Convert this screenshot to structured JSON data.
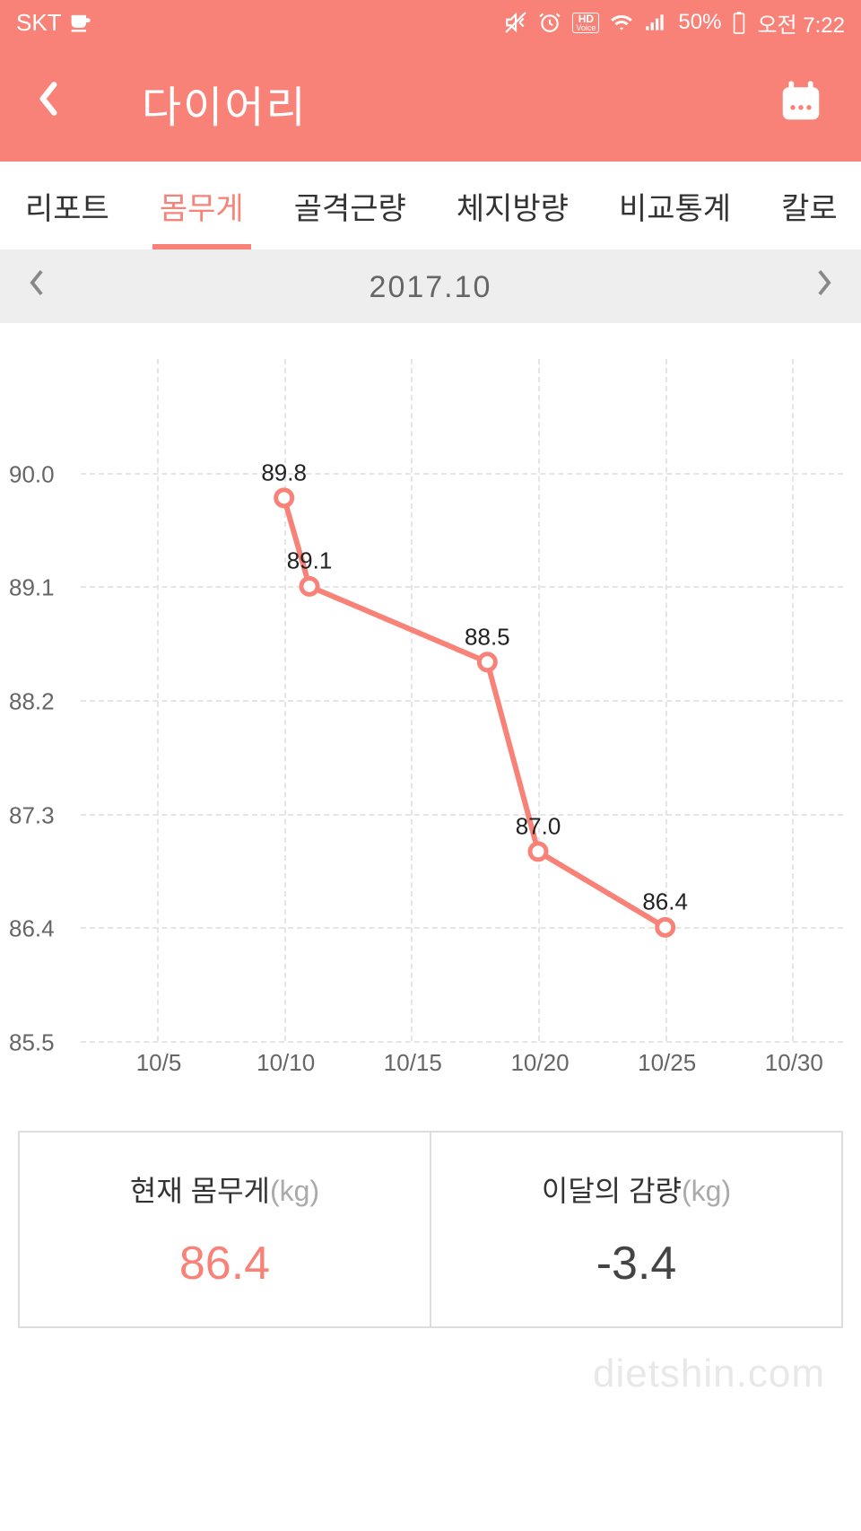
{
  "status": {
    "carrier": "SKT",
    "battery_percent": "50%",
    "time": "오전 7:22",
    "hd_voice": "HD",
    "voice": "Voice"
  },
  "header": {
    "title": "다이어리"
  },
  "tabs": {
    "items": [
      {
        "label": "리포트",
        "active": false
      },
      {
        "label": "몸무게",
        "active": true
      },
      {
        "label": "골격근량",
        "active": false
      },
      {
        "label": "체지방량",
        "active": false
      },
      {
        "label": "비교통계",
        "active": false
      },
      {
        "label": "칼로",
        "active": false
      }
    ]
  },
  "date_selector": {
    "label": "2017.10"
  },
  "chart": {
    "type": "line",
    "line_color": "#f88278",
    "line_width": 6,
    "marker_fill": "#ffffff",
    "marker_stroke": "#f88278",
    "marker_radius": 9,
    "marker_stroke_width": 5,
    "grid_color": "#e5e5e5",
    "background_color": "#ffffff",
    "label_fontsize": 26,
    "y_ticks": [
      90.0,
      89.1,
      88.2,
      87.3,
      86.4,
      85.5
    ],
    "y_labels": [
      "90.0",
      "89.1",
      "88.2",
      "87.3",
      "86.4",
      "85.5"
    ],
    "ylim": [
      85.5,
      90.9
    ],
    "x_ticks": [
      "10/5",
      "10/10",
      "10/15",
      "10/20",
      "10/25",
      "10/30"
    ],
    "x_categories": [
      "10/10",
      "10/11",
      "10/18",
      "10/20",
      "10/25"
    ],
    "x_positions_days": [
      10,
      11,
      18,
      20,
      25
    ],
    "x_domain_days": [
      2,
      32
    ],
    "values": [
      89.8,
      89.1,
      88.5,
      87.0,
      86.4
    ],
    "point_labels": [
      "89.8",
      "89.1",
      "88.5",
      "87.0",
      "86.4"
    ]
  },
  "summary": {
    "current": {
      "label": "현재 몸무게",
      "unit": "(kg)",
      "value": "86.4"
    },
    "delta": {
      "label": "이달의 감량",
      "unit": "(kg)",
      "value": "-3.4"
    }
  },
  "watermark": "dietshin.com",
  "colors": {
    "accent": "#f88278",
    "header_bg": "#f88278",
    "tab_inactive": "#333333",
    "date_bg": "#eeeeee"
  }
}
